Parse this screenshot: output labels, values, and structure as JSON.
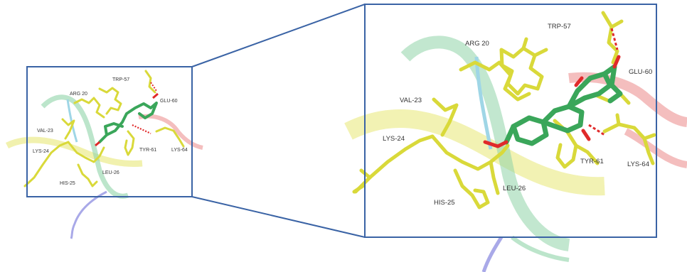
{
  "colors": {
    "frame": "#3a63a5",
    "residue": "#d9d93a",
    "ligand": "#3aa65a",
    "oxygen": "#e02a2a",
    "hbond": "#e02a2a",
    "ribbon_green": "#8fd4a8",
    "ribbon_red": "#f0a3a3",
    "ribbon_yellow": "#eeee9a",
    "ribbon_blue": "#a9a9e8",
    "ribbon_cyan": "#9fd6e6"
  },
  "labels": {
    "trp57": "TRP-57",
    "arg20": "ARG 20",
    "glu60": "GLU-60",
    "val23": "VAL-23",
    "lys24": "LYS-24",
    "tyr61": "TYR-61",
    "lys64": "LYS-64",
    "leu26": "LEU-26",
    "his25": "HIS-25"
  }
}
